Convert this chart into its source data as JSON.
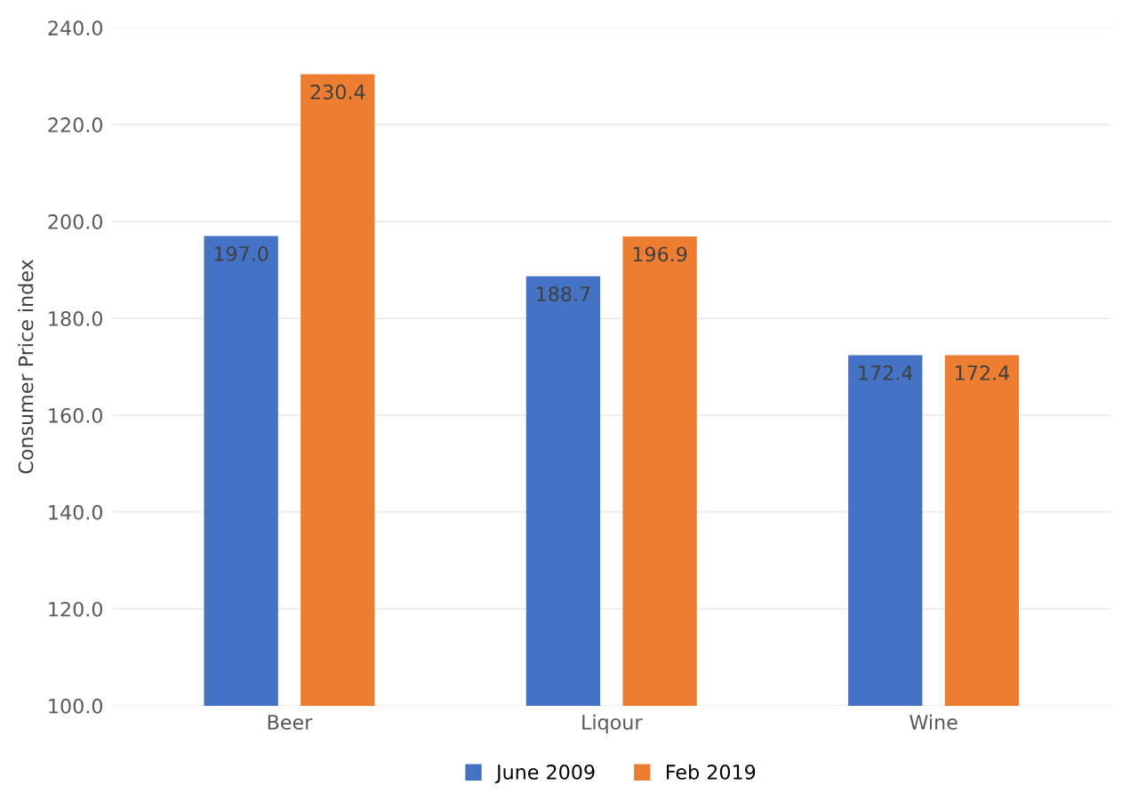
{
  "chart_data": {
    "type": "bar",
    "ylabel": "Consumer Price index",
    "categories": [
      "Beer",
      "Liqour",
      "Wine"
    ],
    "series": [
      {
        "name": "June 2009",
        "color": "#4472c4",
        "values": [
          197.0,
          188.7,
          172.4
        ],
        "value_labels": [
          "197.0",
          "188.7",
          "172.4"
        ]
      },
      {
        "name": "Feb 2019",
        "color": "#ed7d31",
        "values": [
          230.4,
          196.9,
          172.4
        ],
        "value_labels": [
          "230.4",
          "196.9",
          "172.4"
        ]
      }
    ],
    "ylim": [
      100,
      240
    ],
    "yticks": [
      {
        "value": 100,
        "label": "100.0"
      },
      {
        "value": 120,
        "label": "120.0"
      },
      {
        "value": 140,
        "label": "140.0"
      },
      {
        "value": 160,
        "label": "160.0"
      },
      {
        "value": 180,
        "label": "180.0"
      },
      {
        "value": 200,
        "label": "200.0"
      },
      {
        "value": 220,
        "label": "220.0"
      },
      {
        "value": 240,
        "label": "240.0"
      }
    ],
    "grid": "y",
    "legend": "bottom"
  }
}
